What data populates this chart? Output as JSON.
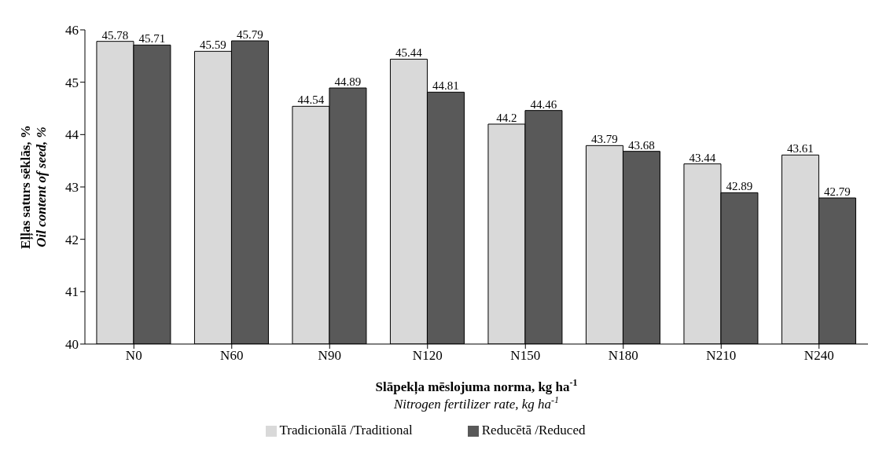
{
  "chart_data": {
    "type": "bar",
    "ylabel": "Eļļas saturs sēklās, %\nOil content of seed, %",
    "xlabel": "Slāpekļa mēslojuma norma, kg ha$^{-1}$\nNitrogen fertilizer rate, kg ha$^{-1}$",
    "categories": [
      "N0",
      "N60",
      "N90",
      "N120",
      "N150",
      "N180",
      "N210",
      "N240"
    ],
    "series": [
      {
        "name": "Tradicionālā /Traditional",
        "color": "#d9d9d9",
        "values": [
          45.78,
          45.59,
          44.54,
          45.44,
          44.2,
          43.79,
          43.44,
          43.61
        ]
      },
      {
        "name": "Reducētā /Reduced",
        "color": "#595959",
        "values": [
          45.71,
          45.79,
          44.89,
          44.81,
          44.46,
          43.68,
          42.89,
          42.79
        ]
      }
    ],
    "ylim": [
      40,
      46
    ],
    "yticks": [
      40,
      41,
      42,
      43,
      44,
      45,
      46
    ],
    "grid": false,
    "legend": "bottom",
    "data_labels": true
  }
}
